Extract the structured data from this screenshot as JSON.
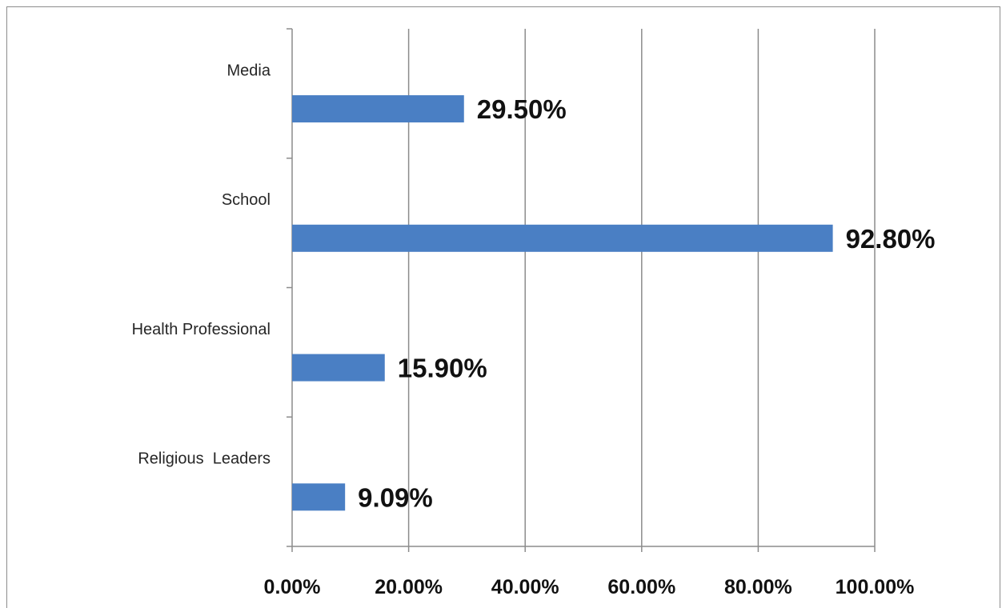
{
  "chart_data": {
    "type": "bar",
    "orientation": "horizontal",
    "categories": [
      "Media",
      "School",
      "Health Professional",
      "Religious  Leaders"
    ],
    "values": [
      29.5,
      92.8,
      15.9,
      9.09
    ],
    "value_labels": [
      "29.50%",
      "92.80%",
      "15.90%",
      "9.09%"
    ],
    "xlim": [
      0,
      100
    ],
    "x_ticks": [
      0,
      20,
      40,
      60,
      80,
      100
    ],
    "x_tick_labels": [
      "0.00%",
      "20.00%",
      "40.00%",
      "60.00%",
      "80.00%",
      "100.00%"
    ],
    "title": "",
    "xlabel": "",
    "ylabel": "",
    "grid": "vertical",
    "legend": "none",
    "colors": {
      "bar": "#4a7fc4",
      "grid": "#8c8c8c",
      "axis": "#8c8c8c"
    }
  }
}
